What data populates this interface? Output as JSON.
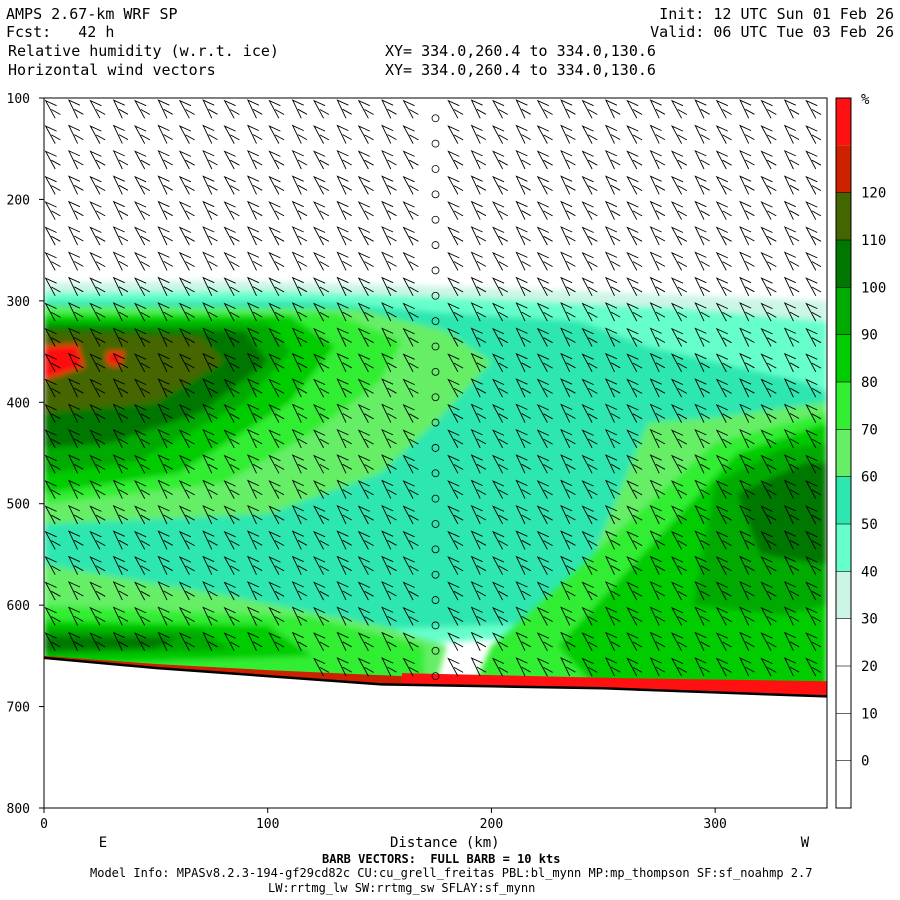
{
  "header": {
    "title": "AMPS 2.67-km WRF SP",
    "fcst": "Fcst:   42 h",
    "field1": "Relative humidity (w.r.t. ice)",
    "field2": "Horizontal wind vectors",
    "init": "Init: 12 UTC Sun 01 Feb 26",
    "valid": "Valid: 06 UTC Tue 03 Feb 26",
    "xy1": "XY= 334.0,260.4 to 334.0,130.6",
    "xy2": "XY= 334.0,260.4 to 334.0,130.6"
  },
  "footer": {
    "barb": "BARB VECTORS:  FULL BARB = 10 kts",
    "model1": "Model Info: MPASv8.2.3-194-gf29cd82c CU:cu_grell_freitas PBL:bl_mynn MP:mp_thompson SF:sf_noahmp 2.7",
    "model2": "LW:rrtmg_lw SW:rrtmg_sw SFLAY:sf_mynn"
  },
  "colors": {
    "c0": "#ffffff",
    "c30": "#ccf5e6",
    "c40": "#66ffcc",
    "c50": "#2ee6b0",
    "c60": "#66ee66",
    "c70": "#33ee33",
    "c80": "#00cc00",
    "c90": "#00aa00",
    "c100": "#007700",
    "c110": "#446600",
    "c120": "#cc2200",
    "c130": "#ff1111",
    "terrain": "#000000"
  },
  "chart_data": {
    "type": "heatmap",
    "description": "Vertical cross-section of relative humidity w.r.t. ice with horizontal wind barbs",
    "xlabel": "Distance (km)",
    "ylabel": "",
    "x_range": [
      0,
      350
    ],
    "y_range": [
      800,
      100
    ],
    "x_ticks": [
      0,
      100,
      200,
      300
    ],
    "y_ticks": [
      100,
      200,
      300,
      400,
      500,
      600,
      700,
      800
    ],
    "x_end_labels": [
      "E",
      "W"
    ],
    "colorbar": {
      "unit": "%",
      "levels": [
        0,
        10,
        20,
        30,
        40,
        50,
        60,
        70,
        80,
        90,
        100,
        110,
        120
      ],
      "bins": [
        {
          "lo": -10,
          "hi": 0,
          "color": "#ffffff"
        },
        {
          "lo": 0,
          "hi": 10,
          "color": "#ffffff"
        },
        {
          "lo": 10,
          "hi": 20,
          "color": "#ffffff"
        },
        {
          "lo": 20,
          "hi": 30,
          "color": "#ffffff"
        },
        {
          "lo": 30,
          "hi": 40,
          "color": "#ccf5e6"
        },
        {
          "lo": 40,
          "hi": 50,
          "color": "#66ffcc"
        },
        {
          "lo": 50,
          "hi": 60,
          "color": "#2ee6b0"
        },
        {
          "lo": 60,
          "hi": 70,
          "color": "#66ee66"
        },
        {
          "lo": 70,
          "hi": 80,
          "color": "#33ee33"
        },
        {
          "lo": 80,
          "hi": 90,
          "color": "#00cc00"
        },
        {
          "lo": 90,
          "hi": 100,
          "color": "#00aa00"
        },
        {
          "lo": 100,
          "hi": 110,
          "color": "#007700"
        },
        {
          "lo": 110,
          "hi": 120,
          "color": "#446600"
        },
        {
          "lo": 120,
          "hi": 130,
          "color": "#cc2200"
        },
        {
          "lo": 130,
          "hi": 140,
          "color": "#ff1111"
        }
      ]
    },
    "terrain_pressure": [
      [
        0,
        652
      ],
      [
        50,
        662
      ],
      [
        100,
        670
      ],
      [
        150,
        678
      ],
      [
        200,
        680
      ],
      [
        250,
        682
      ],
      [
        300,
        686
      ],
      [
        350,
        690
      ]
    ],
    "barb_columns_km": [
      5,
      15,
      25,
      35,
      45,
      55,
      65,
      75,
      85,
      95,
      105,
      115,
      125,
      135,
      145,
      155,
      165,
      175,
      185,
      195,
      205,
      215,
      225,
      235,
      245,
      255,
      265,
      275,
      285,
      295,
      305,
      315,
      325,
      335,
      345
    ],
    "barb_levels_hpa": [
      120,
      145,
      170,
      195,
      220,
      245,
      270,
      295,
      320,
      345,
      370,
      395,
      420,
      445,
      470,
      495,
      520,
      545,
      570,
      595,
      620,
      645,
      670
    ]
  }
}
